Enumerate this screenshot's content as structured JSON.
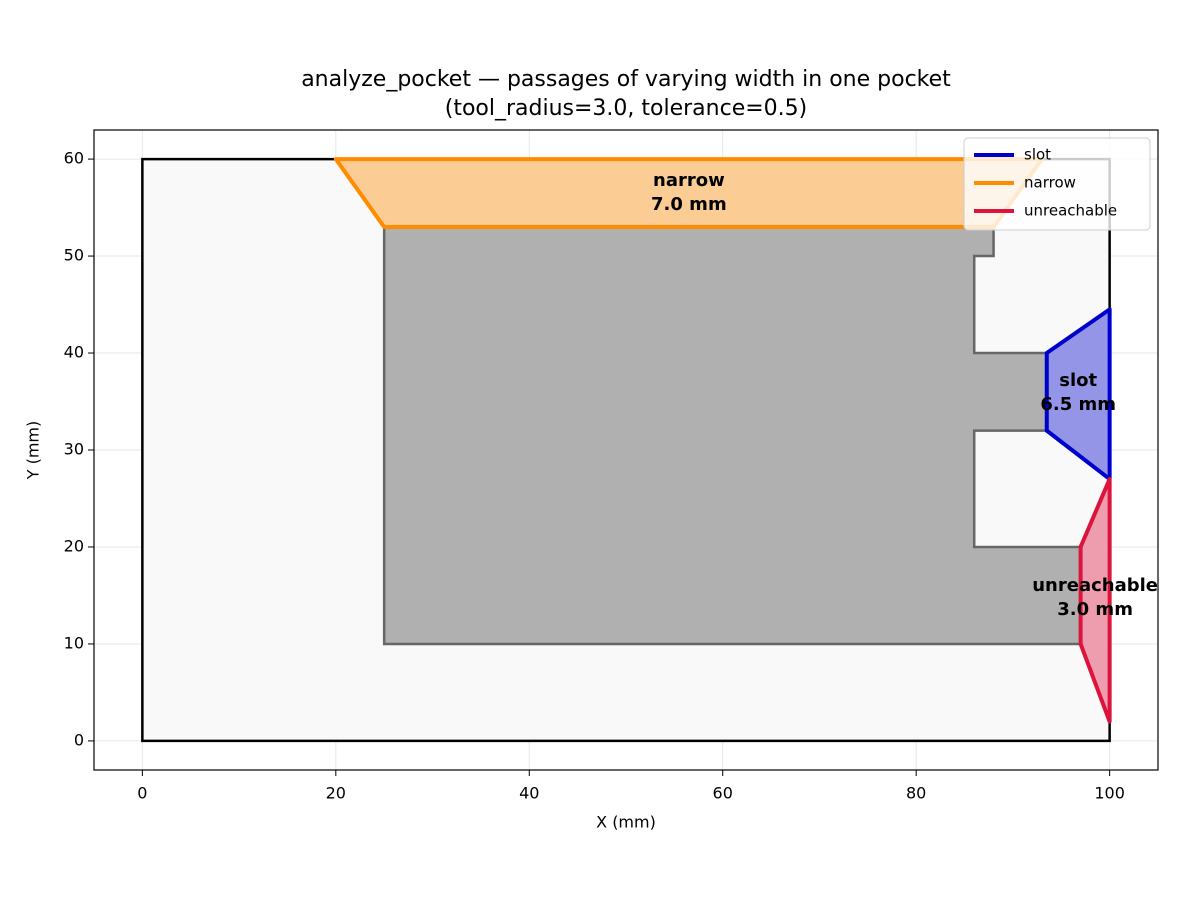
{
  "chart_data": {
    "type": "polygon",
    "title": "analyze_pocket — passages of varying width in one pocket",
    "subtitle": "(tool_radius=3.0, tolerance=0.5)",
    "x_label": "X (mm)",
    "y_label": "Y (mm)",
    "xlim": [
      -5,
      105
    ],
    "ylim": [
      -3,
      63
    ],
    "xticks": [
      0,
      20,
      40,
      60,
      80,
      100
    ],
    "yticks": [
      0,
      10,
      20,
      30,
      40,
      50,
      60
    ],
    "grid": true,
    "legend": "upper right",
    "shapes": [
      {
        "x": [
          0,
          100,
          100,
          0
        ],
        "y": [
          0,
          0,
          60,
          60
        ],
        "fill": "#f9f9f9",
        "edgecolor": "#000000"
      },
      {
        "x": [
          25,
          97,
          97,
          86,
          86,
          93.5,
          93.5,
          86,
          86,
          88,
          88,
          25
        ],
        "y": [
          10,
          10,
          20,
          20,
          32,
          32,
          40,
          40,
          50,
          50,
          53,
          53
        ],
        "fill": "#b0b0b0",
        "edgecolor": "#666666"
      }
    ],
    "series": [
      {
        "name": "slot",
        "color": "#0000cd",
        "x": [
          100,
          93.5,
          93.5,
          100
        ],
        "y": [
          44.5,
          40,
          32,
          27
        ],
        "label": [
          "slot",
          "6.5 mm"
        ]
      },
      {
        "name": "narrow",
        "color": "#ff8c00",
        "x": [
          20,
          93,
          88,
          25
        ],
        "y": [
          60,
          60,
          53,
          53
        ],
        "label": [
          "narrow",
          "7.0 mm"
        ]
      },
      {
        "name": "unreachable",
        "color": "#dc143c",
        "x": [
          100,
          97,
          97,
          100
        ],
        "y": [
          27,
          20,
          10,
          2
        ],
        "label": [
          "unreachable",
          "3.0 mm"
        ]
      }
    ]
  }
}
